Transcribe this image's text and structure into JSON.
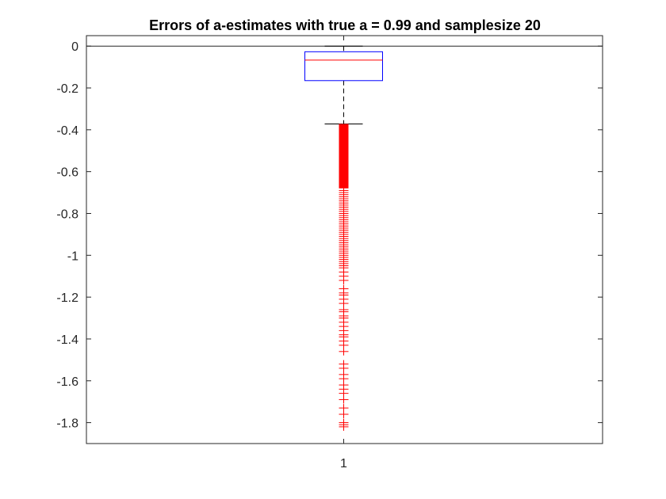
{
  "chart_data": {
    "type": "boxplot",
    "title": "Errors of a-estimates with true a = 0.99 and samplesize 20",
    "xlabel": "",
    "ylabel": "",
    "categories": [
      "1"
    ],
    "ylim": [
      -1.9,
      0.05
    ],
    "yticks": [
      0,
      -0.2,
      -0.4,
      -0.6,
      -0.8,
      -1,
      -1.2,
      -1.4,
      -1.6,
      -1.8
    ],
    "ytick_labels": [
      "0",
      "-0.2",
      "-0.4",
      "-0.6",
      "-0.8",
      "-1",
      "-1.2",
      "-1.4",
      "-1.6",
      "-1.8"
    ],
    "reference_line_y": 0,
    "grid": false,
    "box": {
      "upper_whisker": 0,
      "q3": -0.027,
      "median": -0.067,
      "q1": -0.165,
      "lower_whisker": -0.372
    },
    "outliers_dense_range": [
      -0.372,
      -0.68
    ],
    "outliers": [
      -0.69,
      -0.7,
      -0.71,
      -0.72,
      -0.73,
      -0.74,
      -0.75,
      -0.76,
      -0.77,
      -0.78,
      -0.79,
      -0.8,
      -0.81,
      -0.82,
      -0.83,
      -0.84,
      -0.85,
      -0.86,
      -0.87,
      -0.88,
      -0.89,
      -0.9,
      -0.91,
      -0.92,
      -0.93,
      -0.94,
      -0.95,
      -0.96,
      -0.97,
      -0.98,
      -0.99,
      -1.0,
      -1.01,
      -1.02,
      -1.03,
      -1.04,
      -1.05,
      -1.06,
      -1.08,
      -1.1,
      -1.12,
      -1.16,
      -1.18,
      -1.19,
      -1.21,
      -1.23,
      -1.26,
      -1.27,
      -1.29,
      -1.3,
      -1.32,
      -1.34,
      -1.36,
      -1.38,
      -1.39,
      -1.41,
      -1.43,
      -1.46,
      -1.52,
      -1.54,
      -1.57,
      -1.59,
      -1.62,
      -1.64,
      -1.66,
      -1.69,
      -1.73,
      -1.76,
      -1.8,
      -1.81,
      -1.82
    ],
    "colors": {
      "box": "#0000ff",
      "median": "#ff0000",
      "whisker": "#000000",
      "outlier": "#ff0000",
      "axis": "#262626"
    }
  }
}
